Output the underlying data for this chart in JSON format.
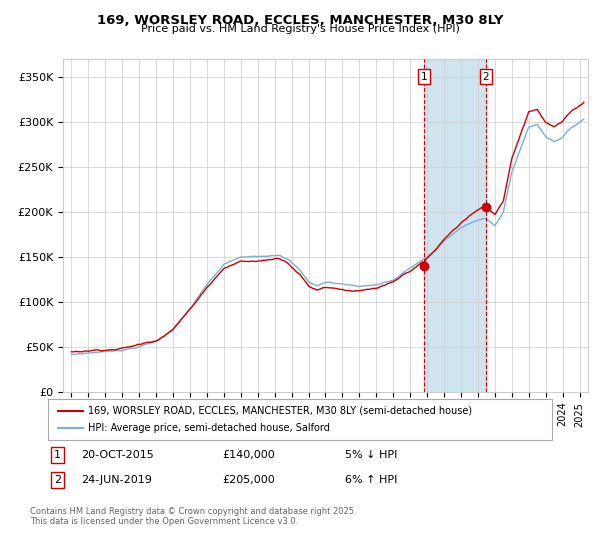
{
  "title": "169, WORSLEY ROAD, ECCLES, MANCHESTER, M30 8LY",
  "subtitle": "Price paid vs. HM Land Registry's House Price Index (HPI)",
  "ylabel_ticks": [
    "£0",
    "£50K",
    "£100K",
    "£150K",
    "£200K",
    "£250K",
    "£300K",
    "£350K"
  ],
  "ylim": [
    0,
    370000
  ],
  "yticks": [
    0,
    50000,
    100000,
    150000,
    200000,
    250000,
    300000,
    350000
  ],
  "price_color": "#cc0000",
  "hpi_color": "#7ab0d4",
  "shade_color": "#d0e4f0",
  "marker1_x": 2015.8,
  "marker2_x": 2019.47,
  "legend_line1": "169, WORSLEY ROAD, ECCLES, MANCHESTER, M30 8LY (semi-detached house)",
  "legend_line2": "HPI: Average price, semi-detached house, Salford",
  "table_row1": [
    "1",
    "20-OCT-2015",
    "£140,000",
    "5% ↓ HPI"
  ],
  "table_row2": [
    "2",
    "24-JUN-2019",
    "£205,000",
    "6% ↑ HPI"
  ],
  "footer": "Contains HM Land Registry data © Crown copyright and database right 2025.\nThis data is licensed under the Open Government Licence v3.0."
}
